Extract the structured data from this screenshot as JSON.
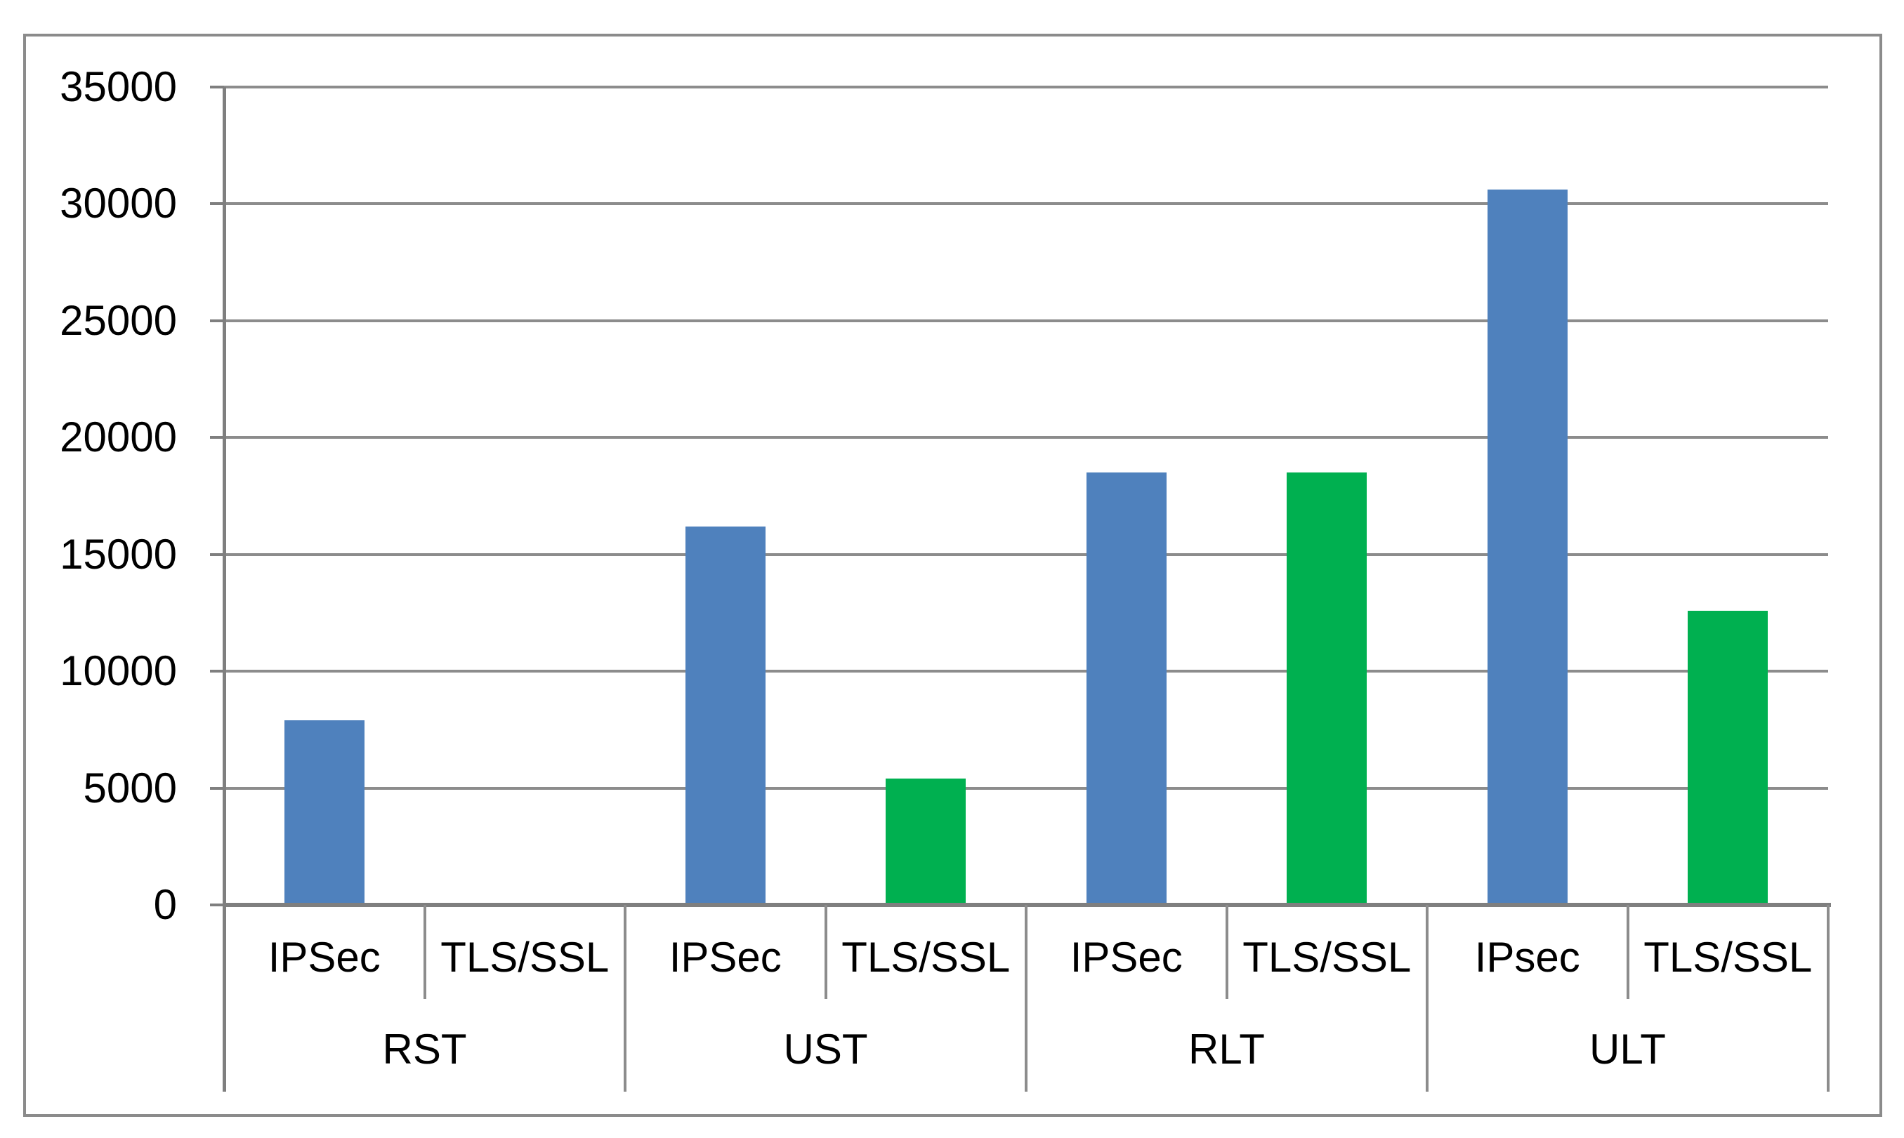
{
  "page": {
    "background_color": "#FFFFFF",
    "frame_color": "#8B8B8B"
  },
  "chart_data": {
    "type": "bar",
    "title": "",
    "xlabel": "",
    "ylabel": "",
    "y_axis": {
      "min": 0,
      "max": 35000,
      "step": 5000,
      "tick_labels": [
        "0",
        "5000",
        "10000",
        "15000",
        "20000",
        "25000",
        "30000",
        "35000"
      ]
    },
    "grid": true,
    "legend": null,
    "groups": [
      {
        "label": "RST",
        "items": [
          {
            "label": "IPSec",
            "series": "IPSec",
            "value": 7900,
            "color": "#4F81BD"
          },
          {
            "label": "TLS/SSL",
            "series": "TLS/SSL",
            "value": 0,
            "color": "#00B050"
          }
        ]
      },
      {
        "label": "UST",
        "items": [
          {
            "label": "IPSec",
            "series": "IPSec",
            "value": 16200,
            "color": "#4F81BD"
          },
          {
            "label": "TLS/SSL",
            "series": "TLS/SSL",
            "value": 5400,
            "color": "#00B050"
          }
        ]
      },
      {
        "label": "RLT",
        "items": [
          {
            "label": "IPSec",
            "series": "IPSec",
            "value": 18500,
            "color": "#4F81BD"
          },
          {
            "label": "TLS/SSL",
            "series": "TLS/SSL",
            "value": 18500,
            "color": "#00B050"
          }
        ]
      },
      {
        "label": "ULT",
        "items": [
          {
            "label": "IPsec",
            "series": "IPSec",
            "value": 30600,
            "color": "#4F81BD"
          },
          {
            "label": "TLS/SSL",
            "series": "TLS/SSL",
            "value": 12600,
            "color": "#00B050"
          }
        ]
      }
    ],
    "colors": {
      "ipsec_bar": "#4F81BD",
      "tls_ssl_bar": "#00B050",
      "gridline": "#8C8C8C",
      "axis": "#7F7F7F",
      "label_text": "#000000"
    }
  }
}
